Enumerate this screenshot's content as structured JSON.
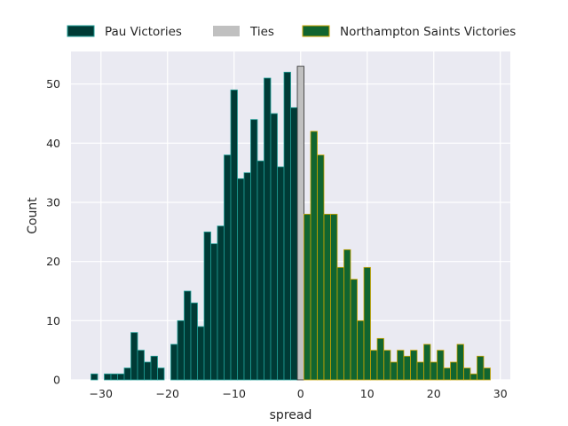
{
  "chart_data": {
    "type": "bar",
    "title": "",
    "xlabel": "spread",
    "ylabel": "Count",
    "xlim": [
      -34.5,
      31.5
    ],
    "ylim": [
      0,
      55.5
    ],
    "xticks": [
      -30,
      -20,
      -10,
      0,
      10,
      20,
      30
    ],
    "yticks": [
      0,
      10,
      20,
      30,
      40,
      50
    ],
    "grid": true,
    "legend_placement": "top, above plot",
    "colors": {
      "background": "#eaeaf2",
      "grid": "#ffffff",
      "pau_fill": "#003b36",
      "pau_edge": "#1f9e96",
      "ties_fill": "#c0c0c0",
      "ties_edge": "#2b2b2b",
      "ns_fill": "#116530",
      "ns_edge": "#c9a400"
    },
    "series": [
      {
        "name": "Pau Victories",
        "bins": [
          [
            -31,
            1
          ],
          [
            -29,
            1
          ],
          [
            -28,
            1
          ],
          [
            -27,
            1
          ],
          [
            -26,
            2
          ],
          [
            -25,
            8
          ],
          [
            -24,
            5
          ],
          [
            -23,
            3
          ],
          [
            -22,
            4
          ],
          [
            -21,
            2
          ],
          [
            -19,
            6
          ],
          [
            -18,
            10
          ],
          [
            -17,
            15
          ],
          [
            -16,
            13
          ],
          [
            -15,
            9
          ],
          [
            -14,
            25
          ],
          [
            -13,
            23
          ],
          [
            -12,
            26
          ],
          [
            -11,
            38
          ],
          [
            -10,
            49
          ],
          [
            -9,
            34
          ],
          [
            -8,
            35
          ],
          [
            -7,
            44
          ],
          [
            -6,
            37
          ],
          [
            -5,
            51
          ],
          [
            -4,
            45
          ],
          [
            -3,
            36
          ],
          [
            -2,
            52
          ],
          [
            -1,
            46
          ]
        ]
      },
      {
        "name": "Ties",
        "bins": [
          [
            0,
            53
          ]
        ]
      },
      {
        "name": "Northampton Saints Victories",
        "bins": [
          [
            1,
            28
          ],
          [
            2,
            42
          ],
          [
            3,
            38
          ],
          [
            4,
            28
          ],
          [
            5,
            28
          ],
          [
            6,
            19
          ],
          [
            7,
            22
          ],
          [
            8,
            17
          ],
          [
            9,
            10
          ],
          [
            10,
            19
          ],
          [
            11,
            5
          ],
          [
            12,
            7
          ],
          [
            13,
            5
          ],
          [
            14,
            3
          ],
          [
            15,
            5
          ],
          [
            16,
            4
          ],
          [
            17,
            5
          ],
          [
            18,
            3
          ],
          [
            19,
            6
          ],
          [
            20,
            3
          ],
          [
            21,
            5
          ],
          [
            22,
            2
          ],
          [
            23,
            3
          ],
          [
            24,
            6
          ],
          [
            25,
            2
          ],
          [
            26,
            1
          ],
          [
            27,
            4
          ],
          [
            28,
            2
          ]
        ]
      }
    ]
  }
}
